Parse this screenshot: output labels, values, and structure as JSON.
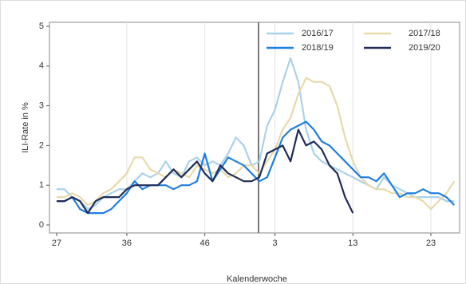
{
  "chart_data": {
    "type": "line",
    "x_label": "Kalenderwoche",
    "y_label": "ILI-Rate in %",
    "categories": [
      "27",
      null,
      null,
      null,
      null,
      null,
      null,
      null,
      null,
      "36",
      null,
      null,
      null,
      null,
      null,
      null,
      null,
      null,
      null,
      "46",
      null,
      null,
      null,
      null,
      null,
      null,
      null,
      null,
      "3",
      null,
      null,
      null,
      null,
      null,
      null,
      null,
      null,
      null,
      "13",
      null,
      null,
      null,
      null,
      null,
      null,
      null,
      null,
      null,
      "23",
      null,
      null,
      null
    ],
    "series": [
      {
        "name": "2016/17",
        "color": "#a9d2ea",
        "values": [
          0.9,
          0.9,
          0.7,
          0.6,
          0.4,
          0.5,
          0.7,
          0.8,
          0.9,
          0.9,
          1.1,
          1.3,
          1.2,
          1.3,
          1.6,
          1.3,
          1.2,
          1.6,
          1.7,
          1.5,
          1.6,
          1.5,
          1.8,
          2.2,
          2.0,
          1.5,
          1.6,
          2.5,
          2.9,
          3.6,
          4.2,
          3.6,
          2.4,
          1.8,
          1.6,
          1.5,
          1.4,
          1.3,
          1.2,
          1.1,
          1.0,
          0.9,
          1.2,
          1.0,
          0.9,
          0.8,
          0.7,
          0.7,
          0.7,
          0.7,
          0.6,
          0.6
        ]
      },
      {
        "name": "2017/18",
        "color": "#e8d9aa",
        "values": [
          0.7,
          0.7,
          0.8,
          0.7,
          0.5,
          0.6,
          0.8,
          0.9,
          1.1,
          1.3,
          1.7,
          1.7,
          1.4,
          1.3,
          1.2,
          1.4,
          1.3,
          1.2,
          1.5,
          1.4,
          1.3,
          1.4,
          1.2,
          1.3,
          1.5,
          1.5,
          1.3,
          1.6,
          1.9,
          2.4,
          2.7,
          3.3,
          3.7,
          3.6,
          3.6,
          3.5,
          3.0,
          2.2,
          1.6,
          1.2,
          1.0,
          0.9,
          0.9,
          0.8,
          0.8,
          0.7,
          0.7,
          0.6,
          0.4,
          0.6,
          0.8,
          1.1
        ]
      },
      {
        "name": "2018/19",
        "color": "#1e7fe0",
        "values": [
          0.6,
          0.6,
          0.7,
          0.4,
          0.3,
          0.3,
          0.3,
          0.4,
          0.6,
          0.8,
          1.1,
          0.9,
          1.0,
          1.0,
          1.0,
          0.9,
          1.0,
          1.0,
          1.1,
          1.8,
          1.1,
          1.4,
          1.7,
          1.6,
          1.5,
          1.3,
          1.1,
          1.2,
          1.7,
          2.2,
          2.4,
          2.5,
          2.6,
          2.4,
          2.1,
          2.0,
          1.8,
          1.6,
          1.4,
          1.2,
          1.2,
          1.1,
          1.3,
          1.0,
          0.7,
          0.8,
          0.8,
          0.9,
          0.8,
          0.8,
          0.7,
          0.5
        ]
      },
      {
        "name": "2019/20",
        "color": "#1f2d58",
        "values": [
          0.6,
          0.6,
          0.7,
          0.6,
          0.3,
          0.6,
          0.7,
          0.7,
          0.7,
          0.9,
          1.0,
          1.0,
          1.0,
          1.0,
          1.2,
          1.4,
          1.2,
          1.4,
          1.6,
          1.3,
          1.1,
          1.5,
          1.3,
          1.2,
          1.1,
          1.1,
          1.2,
          1.8,
          1.9,
          2.0,
          1.6,
          2.4,
          2.0,
          2.1,
          1.9,
          1.5,
          1.3,
          0.7,
          0.3,
          null,
          null,
          null,
          null,
          null,
          null,
          null,
          null,
          null,
          null,
          null,
          null,
          null
        ]
      }
    ],
    "ylim": [
      0,
      5
    ],
    "yticks": [
      0,
      1,
      2,
      3,
      4,
      5
    ],
    "grid": true,
    "legend": "upper right"
  }
}
